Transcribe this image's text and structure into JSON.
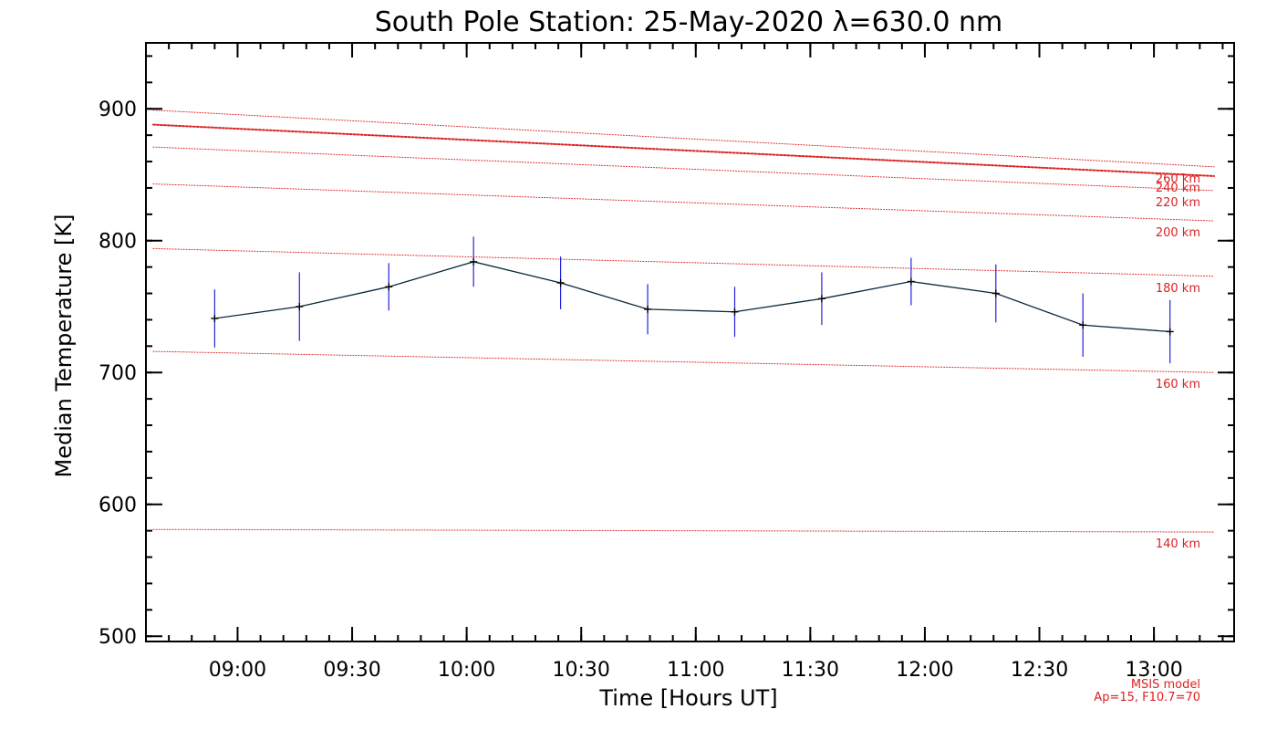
{
  "chart_data": {
    "type": "line",
    "title": "South Pole Station: 25-May-2020 λ=630.0 nm",
    "xlabel": "Time [Hours UT]",
    "ylabel": "Median Temperature [K]",
    "xlim_hours": [
      8.6,
      13.35
    ],
    "ylim": [
      496,
      950
    ],
    "x_ticks": [
      {
        "hour": 9.0,
        "label": "09:00"
      },
      {
        "hour": 9.5,
        "label": "09:30"
      },
      {
        "hour": 10.0,
        "label": "10:00"
      },
      {
        "hour": 10.5,
        "label": "10:30"
      },
      {
        "hour": 11.0,
        "label": "11:00"
      },
      {
        "hour": 11.5,
        "label": "11:30"
      },
      {
        "hour": 12.0,
        "label": "12:00"
      },
      {
        "hour": 12.5,
        "label": "12:30"
      },
      {
        "hour": 13.0,
        "label": "13:00"
      }
    ],
    "x_minor_step_hours": 0.1,
    "y_ticks": [
      {
        "value": 500,
        "label": "500"
      },
      {
        "value": 600,
        "label": "600"
      },
      {
        "value": 700,
        "label": "700"
      },
      {
        "value": 800,
        "label": "800"
      },
      {
        "value": 900,
        "label": "900"
      }
    ],
    "y_minor_step": 20,
    "series": [
      {
        "name": "Median Temperature",
        "color": "#0a2a3a",
        "error_color": "#2222dd",
        "points": [
          {
            "hour": 8.9,
            "temp": 741,
            "err": 22
          },
          {
            "hour": 9.27,
            "temp": 750,
            "err": 26
          },
          {
            "hour": 9.66,
            "temp": 765,
            "err": 18
          },
          {
            "hour": 10.03,
            "temp": 784,
            "err": 19
          },
          {
            "hour": 10.41,
            "temp": 768,
            "err": 20
          },
          {
            "hour": 10.79,
            "temp": 748,
            "err": 19
          },
          {
            "hour": 11.17,
            "temp": 746,
            "err": 19
          },
          {
            "hour": 11.55,
            "temp": 756,
            "err": 20
          },
          {
            "hour": 11.94,
            "temp": 769,
            "err": 18
          },
          {
            "hour": 12.31,
            "temp": 760,
            "err": 22
          },
          {
            "hour": 12.69,
            "temp": 736,
            "err": 24
          },
          {
            "hour": 13.07,
            "temp": 731,
            "err": 24
          }
        ]
      }
    ],
    "msis_model": {
      "color": "#dd2222",
      "lines": [
        {
          "label": "140 km",
          "start_temp": 581,
          "end_temp": 579,
          "emphasis": false
        },
        {
          "label": "160 km",
          "start_temp": 716,
          "end_temp": 700,
          "emphasis": false
        },
        {
          "label": "180 km",
          "start_temp": 794,
          "end_temp": 773,
          "emphasis": false
        },
        {
          "label": "200 km",
          "start_temp": 843,
          "end_temp": 815,
          "emphasis": false
        },
        {
          "label": "220 km",
          "start_temp": 871,
          "end_temp": 838,
          "emphasis": false
        },
        {
          "label": "240 km",
          "start_temp": 888,
          "end_temp": 849,
          "emphasis": true
        },
        {
          "label": "260 km",
          "start_temp": 899,
          "end_temp": 856,
          "emphasis": false
        }
      ],
      "caption_line1": "MSIS model",
      "caption_line2": "Ap=15, F10.7=70"
    }
  }
}
